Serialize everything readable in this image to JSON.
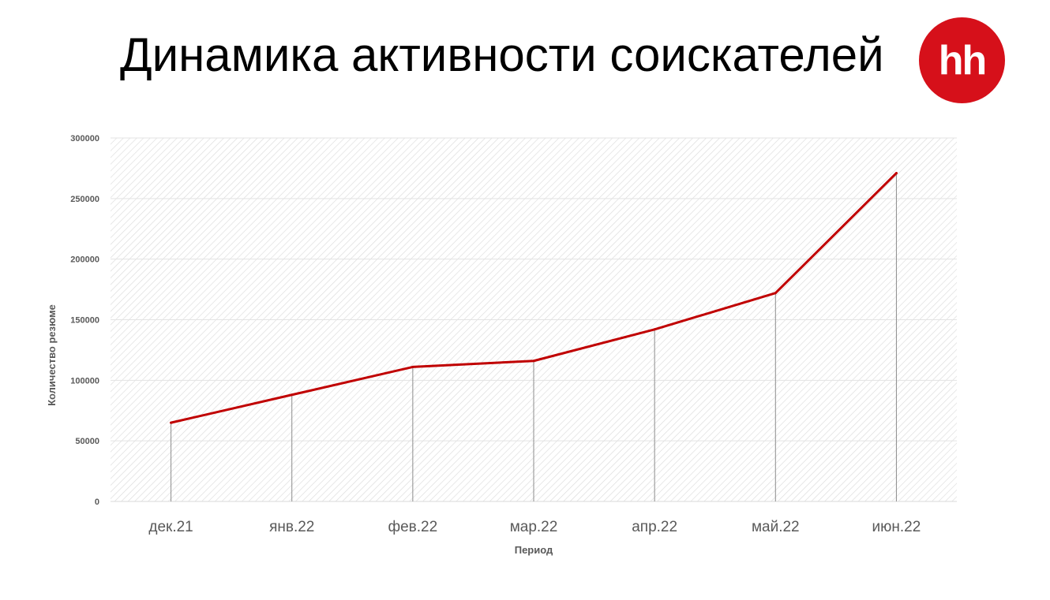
{
  "slide": {
    "title": "Динамика активности соискателей"
  },
  "logo": {
    "text": "hh",
    "color": "#d6101a"
  },
  "chart_data": {
    "type": "line",
    "categories": [
      "дек.21",
      "янв.22",
      "фев.22",
      "мар.22",
      "апр.22",
      "май.22",
      "июн.22"
    ],
    "series": [
      {
        "values": [
          65000,
          88000,
          111000,
          116000,
          142000,
          172000,
          271000
        ],
        "color": "#c00000"
      }
    ],
    "xlabel": "Период",
    "ylabel": "Количество резюме",
    "ylim": [
      0,
      300000
    ],
    "yticks": [
      "0",
      "50000",
      "100000",
      "150000",
      "200000",
      "250000",
      "300000"
    ],
    "grid": true,
    "drop_lines": true,
    "plot_background": "hatched"
  }
}
